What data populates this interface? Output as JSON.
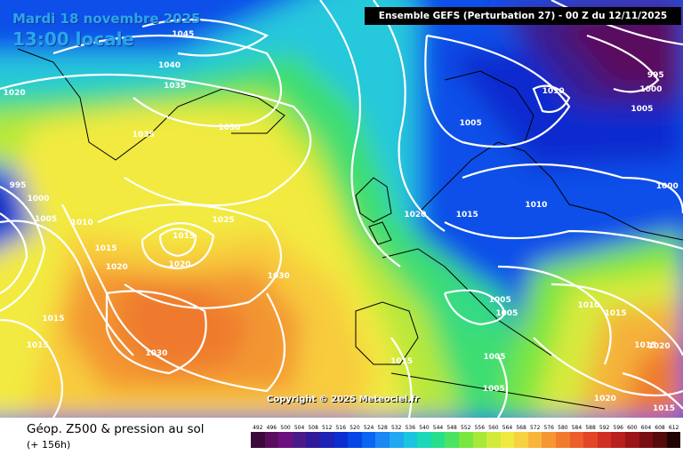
{
  "header": {
    "date_text": "Mardi 18 novembre 2025",
    "time_text": "13:00 locale",
    "model_banner": "Ensemble GEFS  (Perturbation 27)  -  00 Z du 12/11/2025",
    "copyright": "Copyright © 2025 Meteociel.fr"
  },
  "footer": {
    "field_title": "Géop. Z500 & pression au sol",
    "lead_time": "(+ 156h)"
  },
  "isobar_labels": [
    {
      "text": "1045",
      "nx": 0.268,
      "ny": 0.087
    },
    {
      "text": "1040",
      "nx": 0.248,
      "ny": 0.162
    },
    {
      "text": "1035",
      "nx": 0.256,
      "ny": 0.211
    },
    {
      "text": "1035",
      "nx": 0.21,
      "ny": 0.328
    },
    {
      "text": "1030",
      "nx": 0.336,
      "ny": 0.311
    },
    {
      "text": "1020",
      "nx": 0.021,
      "ny": 0.228
    },
    {
      "text": "995",
      "nx": 0.026,
      "ny": 0.449
    },
    {
      "text": "1000",
      "nx": 0.056,
      "ny": 0.481
    },
    {
      "text": "1005",
      "nx": 0.067,
      "ny": 0.53
    },
    {
      "text": "1010",
      "nx": 0.12,
      "ny": 0.538
    },
    {
      "text": "1015",
      "nx": 0.155,
      "ny": 0.6
    },
    {
      "text": "1020",
      "nx": 0.171,
      "ny": 0.645
    },
    {
      "text": "1015",
      "nx": 0.269,
      "ny": 0.57
    },
    {
      "text": "1020",
      "nx": 0.263,
      "ny": 0.638
    },
    {
      "text": "1025",
      "nx": 0.327,
      "ny": 0.532
    },
    {
      "text": "1030",
      "nx": 0.408,
      "ny": 0.666
    },
    {
      "text": "1015",
      "nx": 0.078,
      "ny": 0.768
    },
    {
      "text": "1015",
      "nx": 0.055,
      "ny": 0.832
    },
    {
      "text": "1030",
      "nx": 0.229,
      "ny": 0.851
    },
    {
      "text": "1020",
      "nx": 0.608,
      "ny": 0.519
    },
    {
      "text": "1015",
      "nx": 0.684,
      "ny": 0.519
    },
    {
      "text": "1010",
      "nx": 0.785,
      "ny": 0.496
    },
    {
      "text": "1005",
      "nx": 0.689,
      "ny": 0.3
    },
    {
      "text": "1010",
      "nx": 0.81,
      "ny": 0.223
    },
    {
      "text": "1005",
      "nx": 0.94,
      "ny": 0.266
    },
    {
      "text": "995",
      "nx": 0.96,
      "ny": 0.185
    },
    {
      "text": "1000",
      "nx": 0.953,
      "ny": 0.219
    },
    {
      "text": "1000",
      "nx": 0.977,
      "ny": 0.451
    },
    {
      "text": "1005",
      "nx": 0.732,
      "ny": 0.723
    },
    {
      "text": "1005",
      "nx": 0.742,
      "ny": 0.755
    },
    {
      "text": "1010",
      "nx": 0.862,
      "ny": 0.736
    },
    {
      "text": "1015",
      "nx": 0.901,
      "ny": 0.755
    },
    {
      "text": "1015",
      "nx": 0.588,
      "ny": 0.87
    },
    {
      "text": "1005",
      "nx": 0.724,
      "ny": 0.86
    },
    {
      "text": "1005",
      "nx": 0.723,
      "ny": 0.936
    },
    {
      "text": "1020",
      "nx": 0.886,
      "ny": 0.96
    },
    {
      "text": "1020",
      "nx": 0.965,
      "ny": 0.834
    },
    {
      "text": "1015",
      "nx": 0.945,
      "ny": 0.832
    },
    {
      "text": "1015",
      "nx": 0.972,
      "ny": 0.983
    }
  ],
  "scale": {
    "values": [
      "492",
      "496",
      "500",
      "504",
      "508",
      "512",
      "516",
      "520",
      "524",
      "528",
      "532",
      "536",
      "540",
      "544",
      "548",
      "552",
      "556",
      "560",
      "564",
      "568",
      "572",
      "576",
      "580",
      "584",
      "588",
      "592",
      "596",
      "600",
      "604",
      "608",
      "612"
    ],
    "colors": [
      "#3b0a3a",
      "#5a0d5f",
      "#6e0f80",
      "#4b1a8a",
      "#301a9a",
      "#1e22b5",
      "#0c2dd0",
      "#0546e6",
      "#0a65f2",
      "#1a88f5",
      "#21a8f0",
      "#1bc5df",
      "#1bd9b8",
      "#27e08c",
      "#4be462",
      "#7ae640",
      "#a9e83a",
      "#d2ea3c",
      "#f0ea40",
      "#f8d23e",
      "#f9b53a",
      "#f79634",
      "#f27a2e",
      "#ec5e2a",
      "#e34526",
      "#d12f22",
      "#b8201e",
      "#9a1418",
      "#780e12",
      "#550a0c",
      "#220404"
    ]
  }
}
